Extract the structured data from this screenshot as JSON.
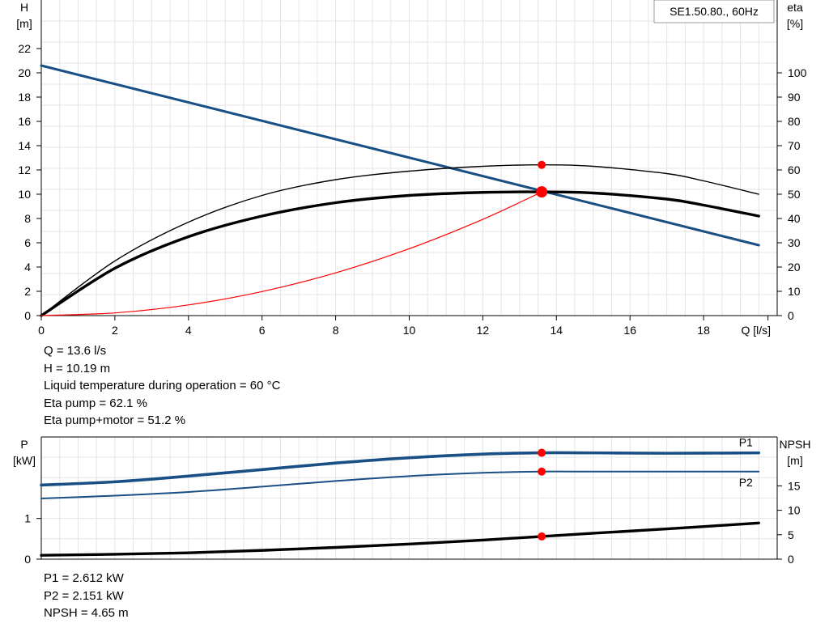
{
  "chart_data": [
    {
      "type": "line",
      "title": "SE1.50.80., 60Hz",
      "xlabel": "Q [l/s]",
      "ylabel": "H\n[m]",
      "y2label": "eta\n[%]",
      "xlim": [
        0,
        20
      ],
      "ylim": [
        0,
        26
      ],
      "y2lim": [
        0,
        130
      ],
      "xticks": [
        0,
        2,
        4,
        6,
        8,
        10,
        12,
        14,
        16,
        18
      ],
      "yticks": [
        0,
        2,
        4,
        6,
        8,
        10,
        12,
        14,
        16,
        18,
        20,
        22
      ],
      "y2ticks": [
        0,
        10,
        20,
        30,
        40,
        50,
        60,
        70,
        80,
        90,
        100
      ],
      "grid": true,
      "series": [
        {
          "axis": "y",
          "color": "#1a4f85",
          "x": [
            0,
            19.5
          ],
          "y": [
            20.6,
            5.8
          ]
        },
        {
          "axis": "y2",
          "color": "#000000",
          "x": [
            0,
            2,
            4,
            6,
            8,
            10,
            12,
            13.6,
            15,
            17,
            18,
            19.5
          ],
          "y": [
            0,
            22.5,
            38.5,
            49.5,
            56,
            59.5,
            61.5,
            62.1,
            61.5,
            58.5,
            55.5,
            50
          ]
        },
        {
          "axis": "y",
          "color": "#000000",
          "x": [
            0,
            2,
            4,
            6,
            8,
            10,
            12,
            13.6,
            15,
            17,
            18,
            19.5
          ],
          "y": [
            0,
            3.9,
            6.5,
            8.2,
            9.3,
            9.9,
            10.15,
            10.19,
            10.1,
            9.6,
            9.1,
            8.2
          ]
        },
        {
          "axis": "y",
          "color": "#ff0000",
          "x": [
            0,
            2,
            4,
            6,
            8,
            10,
            12,
            13.6
          ],
          "y": [
            0,
            0.22,
            0.88,
            1.98,
            3.52,
            5.51,
            7.93,
            10.19
          ]
        }
      ],
      "markers": [
        {
          "axis": "y2",
          "x": 13.6,
          "y": 62.1,
          "r": 5
        },
        {
          "axis": "y",
          "x": 13.6,
          "y": 10.19,
          "r": 7
        }
      ]
    },
    {
      "type": "line",
      "ylabel": "P\n[kW]",
      "y2label": "NPSH\n[m]",
      "xlim": [
        0,
        20
      ],
      "ylim": [
        0,
        3.0
      ],
      "y2lim": [
        0,
        25
      ],
      "yticks": [
        0,
        1
      ],
      "y2ticks": [
        0,
        5,
        10,
        15
      ],
      "grid": true,
      "series": [
        {
          "name": "P1",
          "axis": "y",
          "color": "#1a4f85",
          "x": [
            0,
            2,
            4,
            6,
            8,
            10,
            12,
            13.6,
            15,
            17,
            19.5
          ],
          "y": [
            1.82,
            1.9,
            2.04,
            2.2,
            2.36,
            2.49,
            2.58,
            2.612,
            2.61,
            2.6,
            2.61
          ]
        },
        {
          "name": "P2",
          "axis": "y",
          "color": "#1a4f85",
          "x": [
            0,
            2,
            4,
            6,
            8,
            10,
            12,
            13.6,
            15,
            17,
            19.5
          ],
          "y": [
            1.49,
            1.56,
            1.65,
            1.78,
            1.92,
            2.04,
            2.12,
            2.151,
            2.15,
            2.15,
            2.15
          ]
        },
        {
          "name": "NPSH",
          "axis": "y2",
          "color": "#000000",
          "x": [
            0,
            2,
            4,
            6,
            8,
            10,
            12,
            13.6,
            15,
            17,
            19.5
          ],
          "y": [
            0.8,
            1.0,
            1.3,
            1.8,
            2.4,
            3.1,
            3.9,
            4.65,
            5.3,
            6.2,
            7.4
          ]
        }
      ],
      "markers": [
        {
          "axis": "y",
          "x": 13.6,
          "y": 2.612,
          "r": 5
        },
        {
          "axis": "y",
          "x": 13.6,
          "y": 2.151,
          "r": 5
        },
        {
          "axis": "y2",
          "x": 13.6,
          "y": 4.65,
          "r": 5
        }
      ]
    }
  ],
  "top_info": [
    "Q = 13.6 l/s",
    "H = 10.19 m",
    "Liquid temperature during operation = 60 °C",
    "Eta pump = 62.1 %",
    "Eta pump+motor = 51.2 %"
  ],
  "bottom_info": [
    "P1 = 2.612 kW",
    "P2 = 2.151 kW",
    "NPSH = 4.65 m"
  ]
}
